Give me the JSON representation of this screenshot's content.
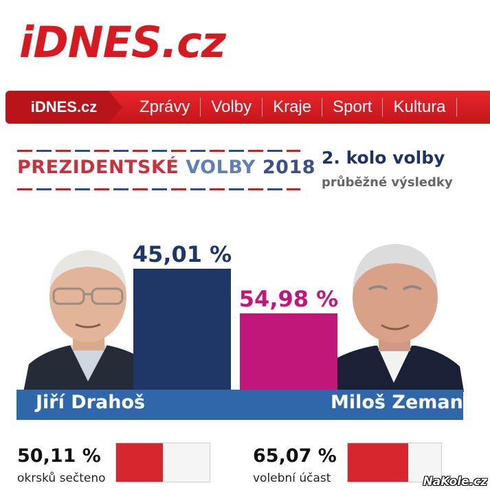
{
  "logo": {
    "text": "iDNES.cz"
  },
  "nav": {
    "home_label": "iDNES.cz",
    "items": [
      {
        "label": "Zprávy"
      },
      {
        "label": "Volby"
      },
      {
        "label": "Kraje"
      },
      {
        "label": "Sport"
      },
      {
        "label": "Kultura"
      }
    ]
  },
  "election": {
    "title_part1": "PREZIDENTSKÉ",
    "title_part2": "VOLBY",
    "year": "2018",
    "round": "2. kolo volby",
    "status": "průběžné výsledky"
  },
  "chart_data": {
    "type": "bar",
    "categories": [
      "Jiří Drahoš",
      "Miloš Zeman"
    ],
    "values": [
      45.01,
      54.98
    ],
    "labels": [
      "45,01 %",
      "54,98 %"
    ],
    "colors": [
      "#1e3767",
      "#c1177a"
    ]
  },
  "candidates": [
    {
      "name": "Jiří Drahoš"
    },
    {
      "name": "Miloš Zeman"
    }
  ],
  "stats": [
    {
      "value": "50,11 %",
      "label": "okrsků sečteno",
      "fraction": 0.5011
    },
    {
      "value": "65,07 %",
      "label": "volební účast",
      "fraction": 0.6507
    }
  ],
  "watermark": "NaKole.cz",
  "colors": {
    "brand_red": "#d71920",
    "navy": "#1e3767",
    "magenta": "#c1177a",
    "band_blue": "#2f67aa"
  }
}
